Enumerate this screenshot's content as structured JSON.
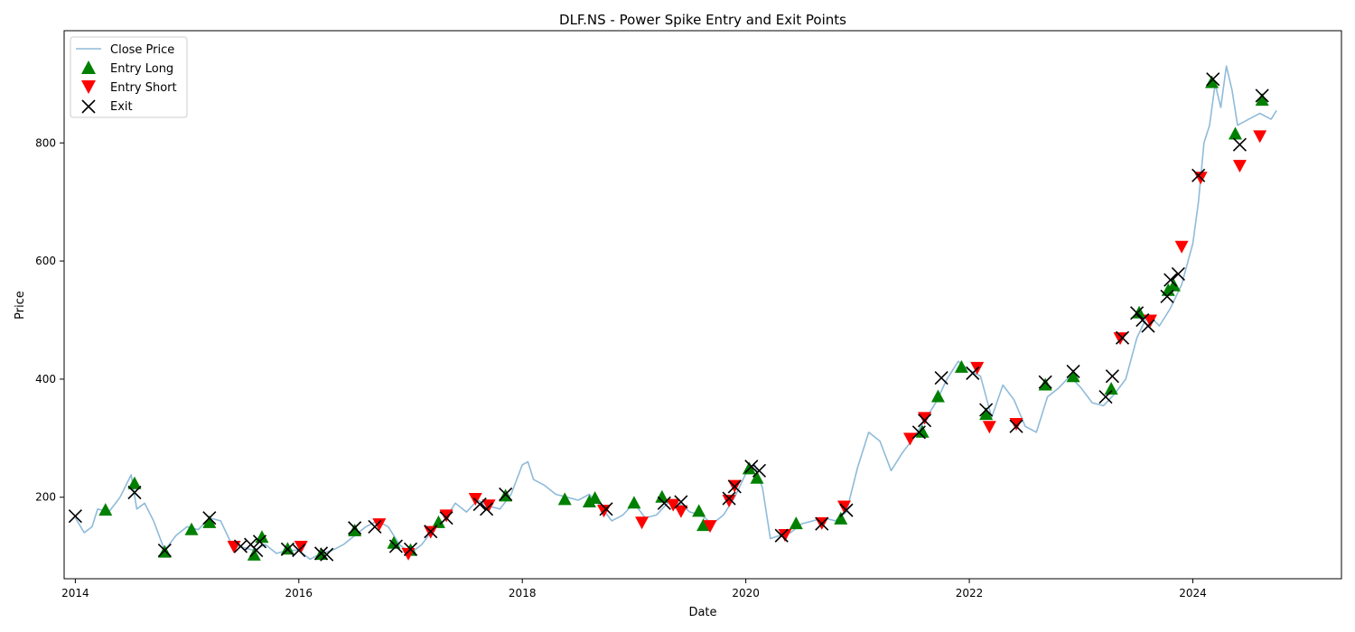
{
  "chart_data": {
    "type": "line",
    "title": "DLF.NS - Power Spike Entry and Exit Points",
    "xlabel": "Date",
    "ylabel": "Price",
    "xlim": [
      2013.9,
      2025.33
    ],
    "ylim": [
      62,
      990
    ],
    "x_ticks": [
      2014,
      2016,
      2018,
      2020,
      2022,
      2024
    ],
    "x_tick_labels": [
      "2014",
      "2016",
      "2018",
      "2020",
      "2022",
      "2024"
    ],
    "y_ticks": [
      200,
      400,
      600,
      800
    ],
    "y_tick_labels": [
      "200",
      "400",
      "600",
      "800"
    ],
    "grid": false,
    "legend": {
      "position": "top-left",
      "entries": [
        "Close Price",
        "Entry Long",
        "Entry Short",
        "Exit"
      ]
    },
    "colors": {
      "close": "#1f77b4",
      "entry_long": "#008000",
      "entry_short": "#ff0000",
      "exit": "#000000"
    },
    "series": [
      {
        "name": "Close Price",
        "kind": "line",
        "x": [
          2014.0,
          2014.08,
          2014.15,
          2014.2,
          2014.3,
          2014.4,
          2014.5,
          2014.55,
          2014.62,
          2014.7,
          2014.8,
          2014.9,
          2015.0,
          2015.1,
          2015.2,
          2015.3,
          2015.4,
          2015.5,
          2015.6,
          2015.7,
          2015.8,
          2015.9,
          2016.0,
          2016.1,
          2016.2,
          2016.3,
          2016.4,
          2016.5,
          2016.6,
          2016.7,
          2016.8,
          2016.9,
          2017.0,
          2017.1,
          2017.2,
          2017.3,
          2017.4,
          2017.5,
          2017.6,
          2017.7,
          2017.8,
          2017.9,
          2018.0,
          2018.05,
          2018.1,
          2018.2,
          2018.3,
          2018.4,
          2018.5,
          2018.6,
          2018.7,
          2018.8,
          2018.9,
          2019.0,
          2019.1,
          2019.2,
          2019.3,
          2019.4,
          2019.5,
          2019.6,
          2019.7,
          2019.8,
          2019.9,
          2020.0,
          2020.08,
          2020.15,
          2020.22,
          2020.3,
          2020.4,
          2020.5,
          2020.6,
          2020.7,
          2020.8,
          2020.9,
          2021.0,
          2021.1,
          2021.2,
          2021.3,
          2021.4,
          2021.5,
          2021.6,
          2021.7,
          2021.8,
          2021.9,
          2022.0,
          2022.1,
          2022.2,
          2022.3,
          2022.4,
          2022.5,
          2022.6,
          2022.7,
          2022.8,
          2022.9,
          2023.0,
          2023.1,
          2023.2,
          2023.3,
          2023.4,
          2023.5,
          2023.6,
          2023.7,
          2023.8,
          2023.9,
          2024.0,
          2024.05,
          2024.1,
          2024.15,
          2024.2,
          2024.25,
          2024.3,
          2024.35,
          2024.4,
          2024.5,
          2024.6,
          2024.7,
          2024.75
        ],
        "y": [
          165,
          140,
          150,
          180,
          175,
          200,
          238,
          180,
          190,
          160,
          110,
          135,
          150,
          145,
          165,
          160,
          120,
          115,
          110,
          120,
          105,
          110,
          110,
          95,
          105,
          110,
          120,
          135,
          150,
          160,
          150,
          120,
          105,
          120,
          145,
          160,
          190,
          175,
          195,
          185,
          180,
          205,
          255,
          260,
          230,
          220,
          205,
          200,
          195,
          205,
          185,
          160,
          170,
          190,
          165,
          170,
          190,
          190,
          175,
          170,
          155,
          170,
          200,
          240,
          255,
          215,
          130,
          135,
          140,
          155,
          160,
          165,
          160,
          175,
          250,
          310,
          295,
          245,
          275,
          300,
          330,
          360,
          400,
          430,
          415,
          405,
          335,
          390,
          365,
          320,
          310,
          370,
          385,
          405,
          385,
          360,
          355,
          375,
          400,
          470,
          510,
          490,
          520,
          560,
          630,
          700,
          800,
          830,
          900,
          860,
          930,
          890,
          830,
          840,
          850,
          840,
          855
        ]
      },
      {
        "name": "Entry Long",
        "kind": "markers",
        "x": [
          2014.27,
          2014.53,
          2014.8,
          2015.04,
          2015.2,
          2015.6,
          2015.67,
          2015.9,
          2016.2,
          2016.5,
          2016.85,
          2017.0,
          2017.25,
          2017.85,
          2018.38,
          2018.6,
          2018.65,
          2019.0,
          2019.25,
          2019.58,
          2019.62,
          2020.03,
          2020.1,
          2020.45,
          2020.85,
          2021.58,
          2021.72,
          2021.93,
          2022.15,
          2022.68,
          2022.93,
          2023.27,
          2023.52,
          2023.78,
          2023.83,
          2024.17,
          2024.38,
          2024.62
        ],
        "y": [
          178,
          223,
          107,
          145,
          157,
          102,
          132,
          112,
          103,
          143,
          122,
          110,
          157,
          202,
          196,
          192,
          198,
          190,
          200,
          176,
          152,
          248,
          232,
          155,
          163,
          310,
          370,
          420,
          340,
          390,
          404,
          383,
          512,
          550,
          558,
          902,
          815,
          872
        ]
      },
      {
        "name": "Entry Short",
        "kind": "markers",
        "x": [
          2015.42,
          2016.02,
          2016.72,
          2016.98,
          2017.18,
          2017.32,
          2017.58,
          2017.7,
          2018.73,
          2019.07,
          2019.35,
          2019.42,
          2019.68,
          2019.85,
          2019.9,
          2020.35,
          2020.68,
          2020.88,
          2021.47,
          2021.6,
          2022.07,
          2022.18,
          2022.42,
          2023.35,
          2023.62,
          2023.9,
          2024.07,
          2024.42,
          2024.6
        ],
        "y": [
          117,
          117,
          155,
          105,
          142,
          170,
          198,
          187,
          178,
          158,
          188,
          177,
          152,
          195,
          220,
          137,
          157,
          185,
          300,
          335,
          420,
          320,
          325,
          470,
          500,
          625,
          742,
          762,
          812
        ]
      },
      {
        "name": "Exit",
        "kind": "markers",
        "x": [
          2014.0,
          2014.53,
          2014.8,
          2015.2,
          2015.48,
          2015.57,
          2015.62,
          2015.65,
          2015.9,
          2016.0,
          2016.2,
          2016.25,
          2016.5,
          2016.68,
          2016.87,
          2017.0,
          2017.18,
          2017.32,
          2017.62,
          2017.68,
          2017.85,
          2018.75,
          2019.27,
          2019.42,
          2019.85,
          2019.9,
          2020.05,
          2020.12,
          2020.32,
          2020.68,
          2020.9,
          2021.55,
          2021.6,
          2021.75,
          2022.03,
          2022.15,
          2022.42,
          2022.68,
          2022.93,
          2023.22,
          2023.28,
          2023.37,
          2023.5,
          2023.55,
          2023.6,
          2023.77,
          2023.8,
          2023.87,
          2024.05,
          2024.18,
          2024.42,
          2024.62
        ],
        "y": [
          168,
          208,
          110,
          165,
          117,
          120,
          110,
          125,
          112,
          110,
          105,
          103,
          148,
          150,
          117,
          112,
          142,
          165,
          188,
          180,
          205,
          180,
          190,
          192,
          198,
          218,
          252,
          245,
          135,
          155,
          178,
          310,
          330,
          402,
          410,
          348,
          320,
          395,
          413,
          370,
          405,
          470,
          512,
          500,
          490,
          540,
          568,
          578,
          745,
          908,
          797,
          880
        ]
      }
    ]
  }
}
